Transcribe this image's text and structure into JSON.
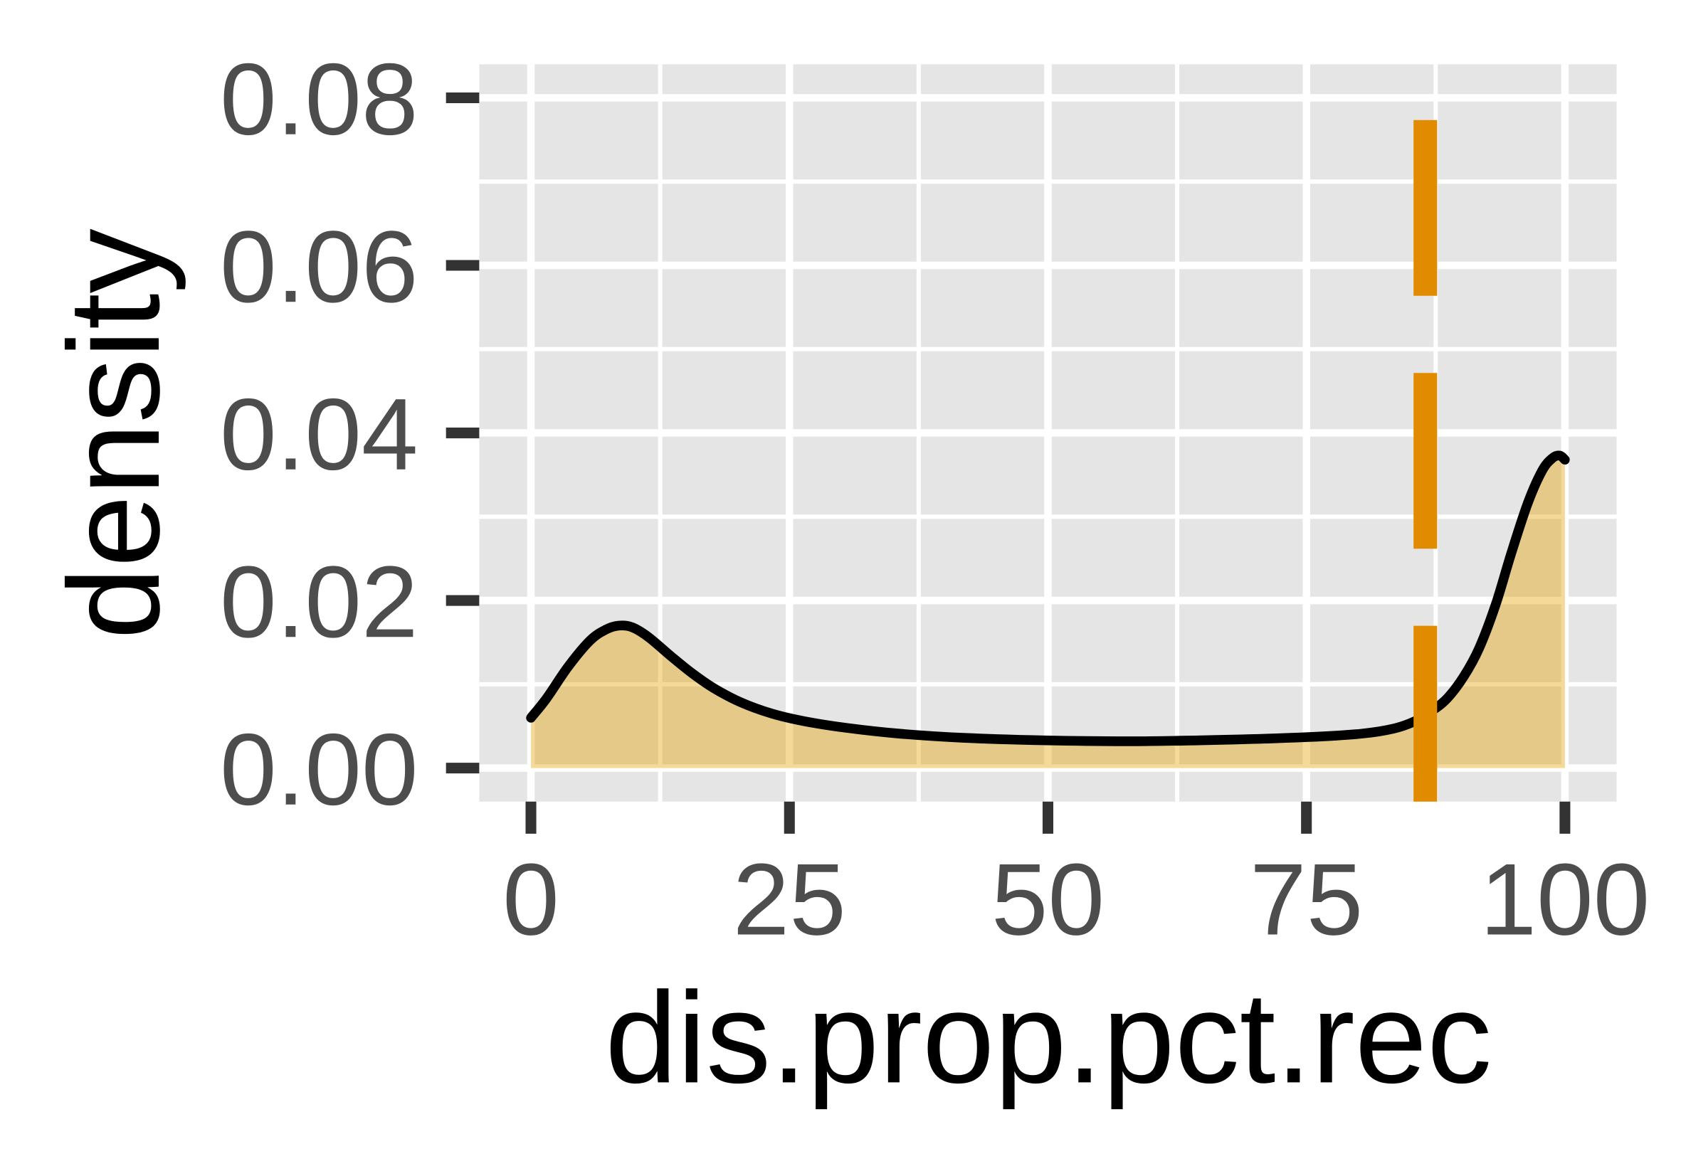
{
  "chart_data": {
    "type": "area",
    "xlabel": "dis.prop.pct.rec",
    "ylabel": "density",
    "xlim": [
      -5,
      105
    ],
    "ylim": [
      -0.004,
      0.084
    ],
    "x_ticks": [
      {
        "value": 0,
        "label": "0"
      },
      {
        "value": 25,
        "label": "25"
      },
      {
        "value": 50,
        "label": "50"
      },
      {
        "value": 75,
        "label": "75"
      },
      {
        "value": 100,
        "label": "100"
      }
    ],
    "y_ticks": [
      {
        "value": 0.0,
        "label": "0.00"
      },
      {
        "value": 0.02,
        "label": "0.02"
      },
      {
        "value": 0.04,
        "label": "0.04"
      },
      {
        "value": 0.06,
        "label": "0.06"
      },
      {
        "value": 0.08,
        "label": "0.08"
      }
    ],
    "grid": true,
    "legend": "none",
    "series": [
      {
        "x": [
          0,
          1.5,
          3.6,
          5.7,
          7.2,
          8.5,
          9.8,
          11.4,
          13.5,
          15.5,
          17.6,
          20.2,
          23.3,
          26.4,
          30.5,
          35.7,
          42,
          50,
          58.6,
          67.9,
          75.2,
          80.3,
          83.4,
          85.5,
          87.1,
          88.6,
          90.2,
          91.7,
          93.3,
          94.8,
          96.4,
          97.8,
          98.8,
          99.5,
          100
        ],
        "y": [
          0.006,
          0.0083,
          0.0121,
          0.0152,
          0.0165,
          0.017,
          0.0168,
          0.0156,
          0.0134,
          0.0114,
          0.0096,
          0.0079,
          0.0065,
          0.0056,
          0.0048,
          0.0041,
          0.0036,
          0.0033,
          0.0032,
          0.0034,
          0.0037,
          0.0041,
          0.0047,
          0.0056,
          0.0068,
          0.0083,
          0.0109,
          0.0143,
          0.0195,
          0.0256,
          0.0316,
          0.0355,
          0.037,
          0.0373,
          0.0368
        ]
      }
    ],
    "reference_lines": [
      {
        "orientation": "vertical",
        "x": 86.5,
        "style": "dashed",
        "color": "#E08B00"
      }
    ],
    "colors": {
      "panel": "#E5E5E5",
      "grid": "#FFFFFF",
      "fill": "#E69F00",
      "line": "#000000",
      "axis_ticks": "#333333",
      "tick_text": "#4D4D4D"
    }
  }
}
